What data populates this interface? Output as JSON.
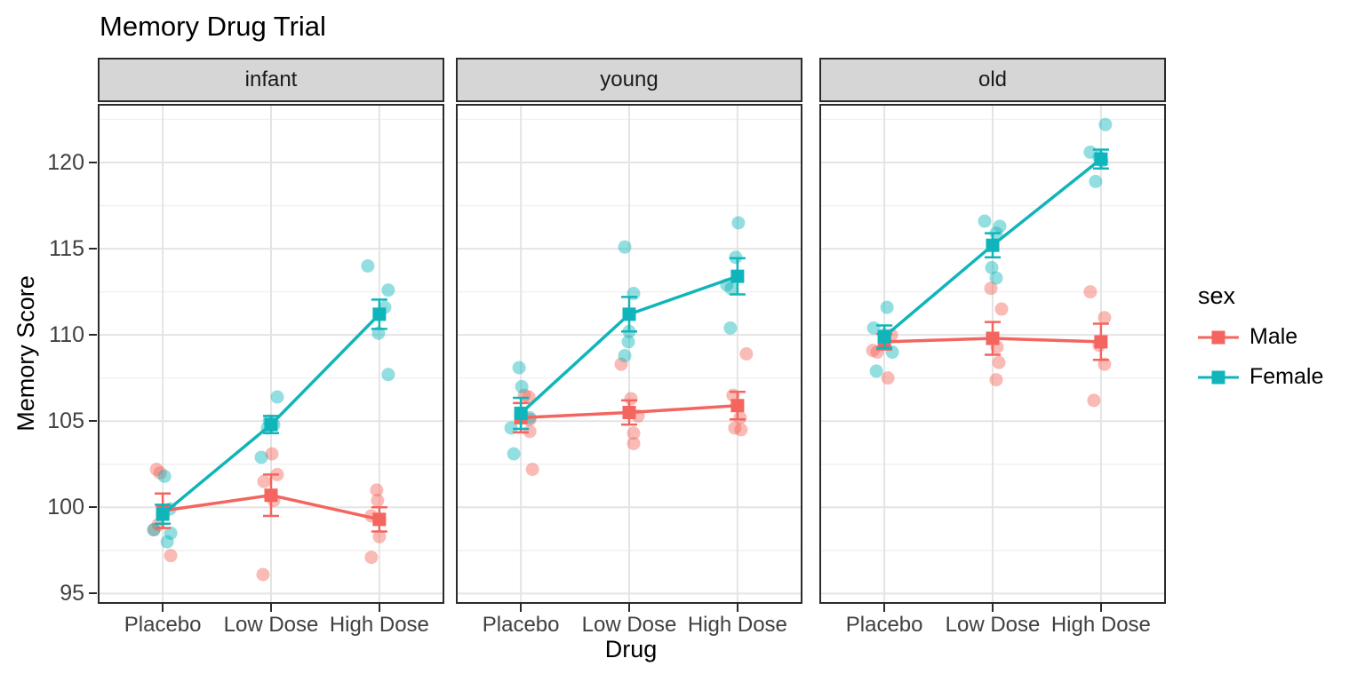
{
  "title": "Memory Drug Trial",
  "legend": {
    "title": "sex",
    "items": [
      {
        "label": "Male",
        "color": "#F3655E"
      },
      {
        "label": "Female",
        "color": "#0FB5BA"
      }
    ]
  },
  "colors": {
    "strip_bg": "#D6D6D6",
    "panel_border": "#2B2B2B",
    "grid_major": "#E4E4E4",
    "grid_minor": "#F1F1F1",
    "tick_text": "#404040"
  },
  "chart_data": {
    "type": "scatter",
    "title": "Memory Drug Trial",
    "xlabel": "Drug",
    "ylabel": "Memory Score",
    "facets": [
      "infant",
      "young",
      "old"
    ],
    "categories": [
      "Placebo",
      "Low Dose",
      "High Dose"
    ],
    "y_ticks": [
      95,
      100,
      105,
      110,
      115,
      120
    ],
    "y_minor_ticks": [
      97.5,
      102.5,
      107.5,
      112.5,
      117.5,
      122.5
    ],
    "ylim": [
      94.4,
      123.4
    ],
    "grid": true,
    "legend_position": "right",
    "series": [
      {
        "name": "Male",
        "color": "#F3655E",
        "data": {
          "infant": {
            "mean": [
              99.8,
              100.7,
              99.3
            ],
            "se": [
              1.0,
              1.2,
              0.7
            ],
            "points": [
              [
                102.2,
                102.0,
                99.0,
                98.7,
                97.2
              ],
              [
                103.1,
                101.9,
                101.5,
                100.4,
                96.1
              ],
              [
                101.0,
                100.4,
                99.5,
                98.3,
                97.1
              ]
            ],
            "jitter_dx": [
              [
                -7,
                -3,
                -5,
                -10,
                9
              ],
              [
                1,
                7,
                -8,
                3,
                -9
              ],
              [
                -3,
                -2,
                -9,
                0,
                -9
              ]
            ]
          },
          "young": {
            "mean": [
              105.2,
              105.5,
              105.9
            ],
            "se": [
              0.85,
              0.7,
              0.8
            ],
            "points": [
              [
                106.5,
                106.4,
                105.1,
                104.4,
                102.2
              ],
              [
                108.3,
                106.3,
                105.3,
                104.3,
                103.7
              ],
              [
                108.9,
                106.5,
                105.2,
                104.6,
                104.5
              ]
            ],
            "jitter_dx": [
              [
                4,
                9,
                10,
                10,
                13
              ],
              [
                -9,
                2,
                10,
                5,
                5
              ],
              [
                10,
                -5,
                3,
                -3,
                4
              ]
            ]
          },
          "old": {
            "mean": [
              109.6,
              109.8,
              109.6
            ],
            "se": [
              0.45,
              0.95,
              1.05
            ],
            "points": [
              [
                110.0,
                109.9,
                109.1,
                109.0,
                107.5
              ],
              [
                112.7,
                111.5,
                109.3,
                108.4,
                107.4
              ],
              [
                112.5,
                111.0,
                109.4,
                108.3,
                106.2
              ]
            ],
            "jitter_dx": [
              [
                8,
                0,
                -13,
                -8,
                4
              ],
              [
                -2,
                10,
                5,
                7,
                4
              ],
              [
                -12,
                4,
                -2,
                4,
                -8
              ]
            ]
          }
        }
      },
      {
        "name": "Female",
        "color": "#0FB5BA",
        "data": {
          "infant": {
            "mean": [
              99.6,
              104.8,
              111.2
            ],
            "se": [
              0.55,
              0.5,
              0.85
            ],
            "points": [
              [
                101.8,
                99.9,
                98.7,
                98.5,
                98.0
              ],
              [
                106.4,
                105.0,
                104.8,
                104.6,
                102.9
              ],
              [
                114.0,
                112.6,
                111.6,
                110.1,
                107.7
              ]
            ],
            "jitter_dx": [
              [
                2,
                8,
                -10,
                9,
                5
              ],
              [
                7,
                -2,
                3,
                -4,
                -11
              ],
              [
                -13,
                10,
                6,
                -1,
                10
              ]
            ]
          },
          "young": {
            "mean": [
              105.45,
              111.2,
              113.4
            ],
            "se": [
              0.9,
              1.0,
              1.05
            ],
            "points": [
              [
                108.1,
                107.0,
                105.2,
                104.6,
                103.1
              ],
              [
                115.1,
                112.4,
                110.2,
                109.6,
                108.8
              ],
              [
                116.5,
                114.5,
                112.9,
                112.7,
                110.4
              ]
            ],
            "jitter_dx": [
              [
                -2,
                1,
                10,
                -11,
                -8
              ],
              [
                -5,
                5,
                0,
                -1,
                -5
              ],
              [
                1,
                -2,
                -12,
                -7,
                -8
              ]
            ]
          },
          "old": {
            "mean": [
              109.9,
              115.2,
              120.2
            ],
            "se": [
              0.65,
              0.7,
              0.55
            ],
            "points": [
              [
                111.6,
                110.4,
                110.0,
                109.0,
                107.9
              ],
              [
                116.6,
                116.3,
                115.9,
                113.9,
                113.3
              ],
              [
                122.2,
                120.6,
                120.3,
                120.1,
                118.9
              ]
            ],
            "jitter_dx": [
              [
                3,
                -12,
                0,
                9,
                -9
              ],
              [
                -9,
                8,
                4,
                -1,
                4
              ],
              [
                5,
                -12,
                -2,
                1,
                -6
              ]
            ]
          }
        }
      }
    ]
  }
}
